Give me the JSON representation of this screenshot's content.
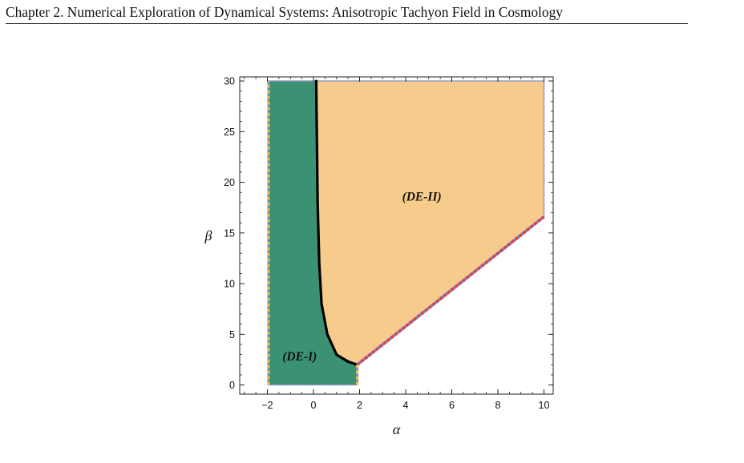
{
  "header": {
    "chapter_title": "Chapter 2. Numerical Exploration of Dynamical Systems: Anisotropic Tachyon Field in Cosmology"
  },
  "chart_data": {
    "type": "area",
    "xlabel": "α",
    "ylabel": "β",
    "xlim": [
      -3.2,
      10.4
    ],
    "ylim": [
      -0.9,
      30.4
    ],
    "x_ticks": [
      -2,
      0,
      2,
      4,
      6,
      8,
      10
    ],
    "y_ticks": [
      0,
      5,
      10,
      15,
      20,
      25,
      30
    ],
    "grid": false,
    "colors": {
      "de1": "#3a9272",
      "de2": "#f6cb8b",
      "boundary": "#000000",
      "dashed_red": "#e0403a",
      "dashed_gold": "#f0c040",
      "edge": "#8b98c8"
    },
    "regions": [
      {
        "label": "(DE-I)",
        "label_at": [
          -0.6,
          2.8
        ],
        "polygon": [
          [
            -1.95,
            0
          ],
          [
            1.9,
            0
          ],
          [
            1.9,
            2.0
          ],
          [
            1.0,
            3.0
          ],
          [
            0.6,
            5.0
          ],
          [
            0.35,
            8.0
          ],
          [
            0.25,
            12.0
          ],
          [
            0.18,
            18.0
          ],
          [
            0.15,
            24.0
          ],
          [
            0.12,
            30.0
          ],
          [
            -1.95,
            30.0
          ]
        ]
      },
      {
        "label": "(DE-II)",
        "label_at": [
          4.7,
          18.6
        ],
        "polygon": [
          [
            0.12,
            30.0
          ],
          [
            10.0,
            30.0
          ],
          [
            10.0,
            16.6
          ],
          [
            1.9,
            2.0
          ],
          [
            1.0,
            3.0
          ],
          [
            0.6,
            5.0
          ],
          [
            0.35,
            8.0
          ],
          [
            0.25,
            12.0
          ],
          [
            0.18,
            18.0
          ],
          [
            0.15,
            24.0
          ]
        ]
      }
    ],
    "curves": [
      {
        "style": "solid-black",
        "points": [
          [
            0.12,
            30.0
          ],
          [
            0.15,
            24.0
          ],
          [
            0.18,
            18.0
          ],
          [
            0.25,
            12.0
          ],
          [
            0.35,
            8.0
          ],
          [
            0.6,
            5.0
          ],
          [
            1.0,
            3.0
          ],
          [
            1.5,
            2.3
          ],
          [
            1.9,
            2.0
          ]
        ]
      },
      {
        "style": "dashed-red",
        "points": [
          [
            1.9,
            2.0
          ],
          [
            10.0,
            16.6
          ]
        ]
      },
      {
        "style": "dashed-gold",
        "points": [
          [
            -1.95,
            0
          ],
          [
            -1.95,
            30.0
          ]
        ]
      },
      {
        "style": "dashed-gold",
        "points": [
          [
            1.9,
            0
          ],
          [
            1.9,
            2.0
          ]
        ]
      }
    ]
  }
}
